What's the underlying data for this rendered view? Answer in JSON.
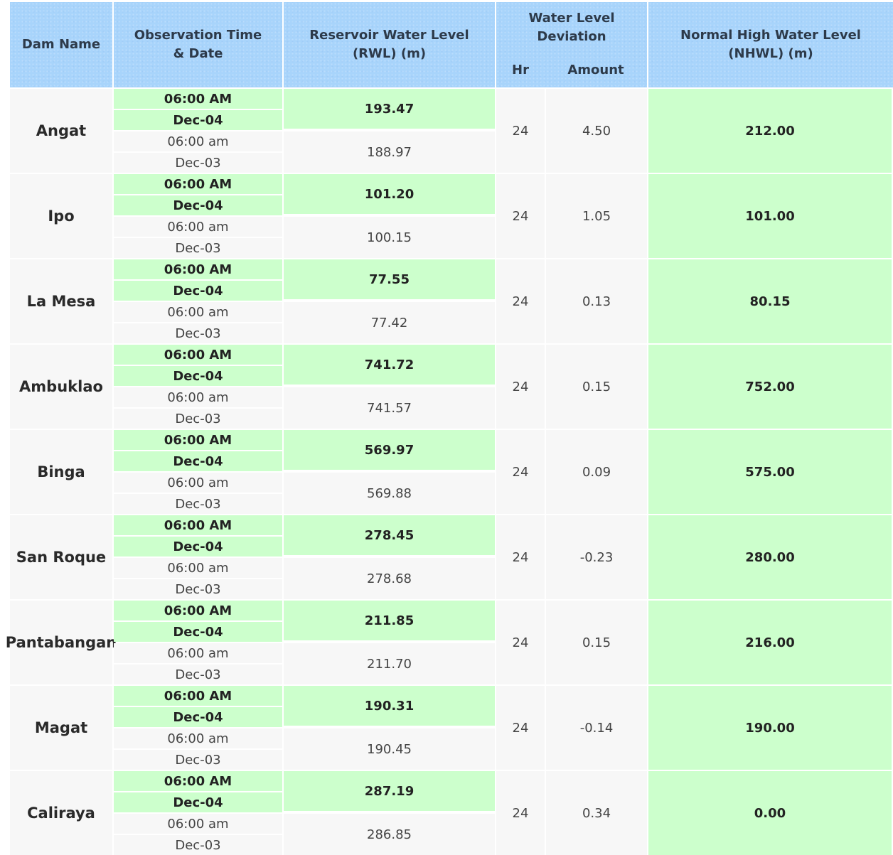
{
  "headers": {
    "dam_name": "Dam Name",
    "observation": "Observation Time & Date",
    "rwl": "Reservoir Water Level (RWL) (m)",
    "deviation": "Water Level Deviation",
    "hr": "Hr",
    "amount": "Amount",
    "nhwl": "Normal High Water Level (NHWL) (m)"
  },
  "rows": [
    {
      "name": "Angat",
      "cur_time": "06:00 AM",
      "cur_date": "Dec-04",
      "prev_time": "06:00 am",
      "prev_date": "Dec-03",
      "cur_rwl": "193.47",
      "prev_rwl": "188.97",
      "hr": "24",
      "amount": "4.50",
      "nhwl": "212.00"
    },
    {
      "name": "Ipo",
      "cur_time": "06:00 AM",
      "cur_date": "Dec-04",
      "prev_time": "06:00 am",
      "prev_date": "Dec-03",
      "cur_rwl": "101.20",
      "prev_rwl": "100.15",
      "hr": "24",
      "amount": "1.05",
      "nhwl": "101.00"
    },
    {
      "name": "La Mesa",
      "cur_time": "06:00 AM",
      "cur_date": "Dec-04",
      "prev_time": "06:00 am",
      "prev_date": "Dec-03",
      "cur_rwl": "77.55",
      "prev_rwl": "77.42",
      "hr": "24",
      "amount": "0.13",
      "nhwl": "80.15"
    },
    {
      "name": "Ambuklao",
      "cur_time": "06:00 AM",
      "cur_date": "Dec-04",
      "prev_time": "06:00 am",
      "prev_date": "Dec-03",
      "cur_rwl": "741.72",
      "prev_rwl": "741.57",
      "hr": "24",
      "amount": "0.15",
      "nhwl": "752.00"
    },
    {
      "name": "Binga",
      "cur_time": "06:00 AM",
      "cur_date": "Dec-04",
      "prev_time": "06:00 am",
      "prev_date": "Dec-03",
      "cur_rwl": "569.97",
      "prev_rwl": "569.88",
      "hr": "24",
      "amount": "0.09",
      "nhwl": "575.00"
    },
    {
      "name": "San Roque",
      "cur_time": "06:00 AM",
      "cur_date": "Dec-04",
      "prev_time": "06:00 am",
      "prev_date": "Dec-03",
      "cur_rwl": "278.45",
      "prev_rwl": "278.68",
      "hr": "24",
      "amount": "-0.23",
      "nhwl": "280.00"
    },
    {
      "name": "Pantabangan",
      "cur_time": "06:00 AM",
      "cur_date": "Dec-04",
      "prev_time": "06:00 am",
      "prev_date": "Dec-03",
      "cur_rwl": "211.85",
      "prev_rwl": "211.70",
      "hr": "24",
      "amount": "0.15",
      "nhwl": "216.00"
    },
    {
      "name": "Magat",
      "cur_time": "06:00 AM",
      "cur_date": "Dec-04",
      "prev_time": "06:00 am",
      "prev_date": "Dec-03",
      "cur_rwl": "190.31",
      "prev_rwl": "190.45",
      "hr": "24",
      "amount": "-0.14",
      "nhwl": "190.00"
    },
    {
      "name": "Caliraya",
      "cur_time": "06:00 AM",
      "cur_date": "Dec-04",
      "prev_time": "06:00 am",
      "prev_date": "Dec-03",
      "cur_rwl": "287.19",
      "prev_rwl": "286.85",
      "hr": "24",
      "amount": "0.34",
      "nhwl": "0.00"
    }
  ]
}
